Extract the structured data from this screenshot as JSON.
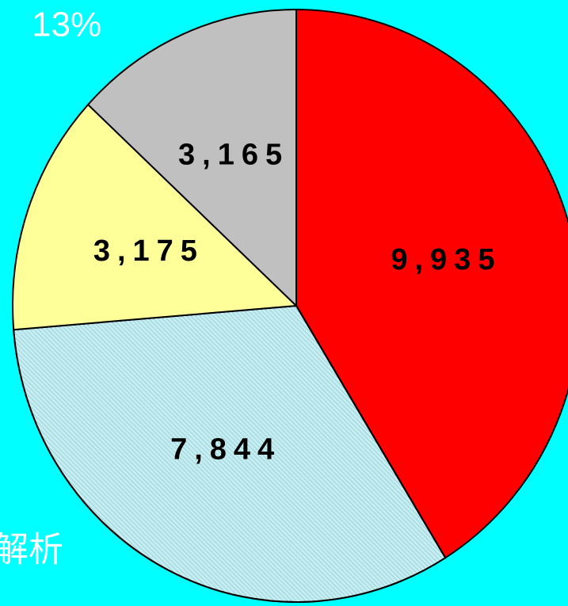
{
  "chart_data": {
    "type": "pie",
    "values": [
      9935,
      7844,
      3175,
      3165
    ],
    "value_labels": [
      "9,935",
      "7,844",
      "3,175",
      "3,165"
    ],
    "colors": [
      "#ff0000",
      "#c6eef0",
      "#ffff99",
      "#c0c0c0"
    ],
    "hatch": [
      false,
      true,
      false,
      false
    ],
    "annotations": [
      "13%",
      "解析"
    ]
  }
}
